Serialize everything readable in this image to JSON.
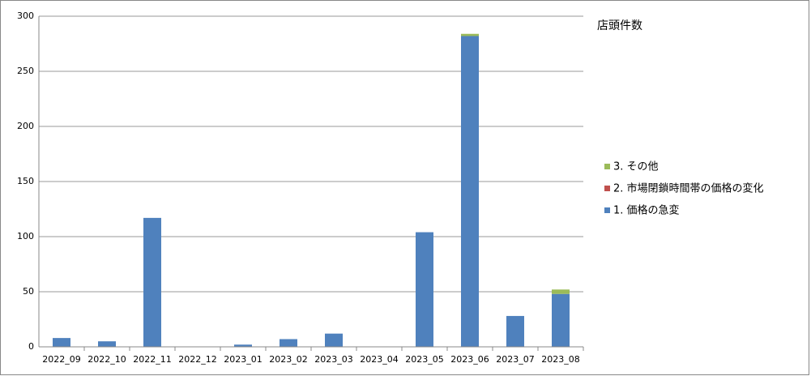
{
  "chart_data": {
    "type": "stacked_bar",
    "title": "店頭件数",
    "categories": [
      "2022_09",
      "2022_10",
      "2022_11",
      "2022_12",
      "2023_01",
      "2023_02",
      "2023_03",
      "2023_04",
      "2023_05",
      "2023_06",
      "2023_07",
      "2023_08"
    ],
    "series": [
      {
        "name": "1. 価格の急変",
        "color": "#4f81bd",
        "values": [
          8,
          5,
          117,
          0,
          2,
          7,
          12,
          0,
          104,
          282,
          28,
          48
        ]
      },
      {
        "name": "2. 市場閉鎖時間帯の価格の変化",
        "color": "#c0504d",
        "values": [
          0,
          0,
          0,
          0,
          0,
          0,
          0,
          0,
          0,
          0,
          0,
          0
        ]
      },
      {
        "name": "3. その他",
        "color": "#9bbb59",
        "values": [
          0,
          0,
          0,
          0,
          0,
          0,
          0,
          0,
          0,
          2,
          0,
          4
        ]
      }
    ],
    "ylim": [
      0,
      300
    ],
    "yticks": [
      0,
      50,
      100,
      150,
      200,
      250,
      300
    ],
    "grid": true,
    "legend": "right"
  }
}
